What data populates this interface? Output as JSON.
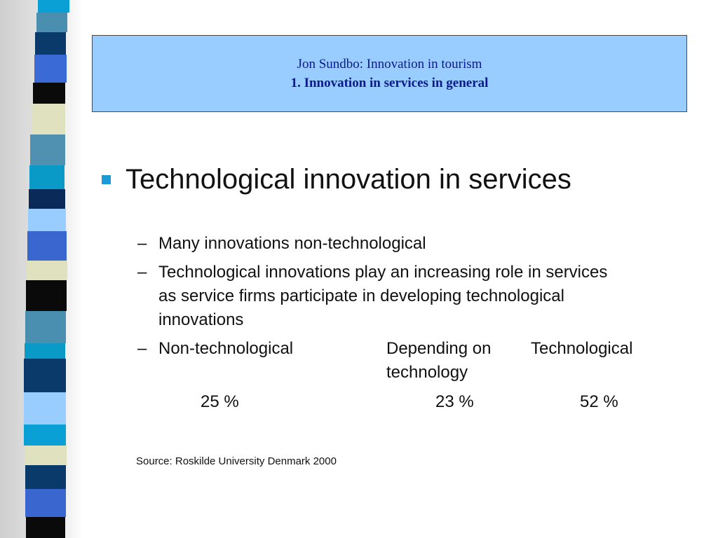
{
  "header": {
    "line1": "Jon Sundbo: Innovation in tourism",
    "line2": "1. Innovation in services in general"
  },
  "bullet": "Technological innovation in services",
  "sub_bullets": [
    {
      "dash": "–",
      "text": "Many innovations non-technological"
    },
    {
      "dash": "–",
      "lines": [
        "Technological innovations play an increasing role in services",
        "as service firms participate in developing technological",
        "innovations"
      ]
    }
  ],
  "table": {
    "dash": "–",
    "headers": [
      "Non-technological",
      "Depending on",
      "Technological"
    ],
    "header2_line2": "technology",
    "values": [
      "25 %",
      "23 %",
      "52 %"
    ]
  },
  "source": "Source: Roskilde University Denmark 2000",
  "colors": {
    "title_bg": "#99ccff",
    "title_text": "#0a1a8c",
    "bullet_square": "#1a9ad6",
    "strip": [
      "#0aa0d6",
      "#4a8fb0",
      "#0a3a6a",
      "#3a6ad6",
      "#0a0a0a",
      "#e0e2bf",
      "#5090b0",
      "#0a9ac8",
      "#0a2a5a",
      "#99ccff",
      "#3a66d0"
    ]
  }
}
